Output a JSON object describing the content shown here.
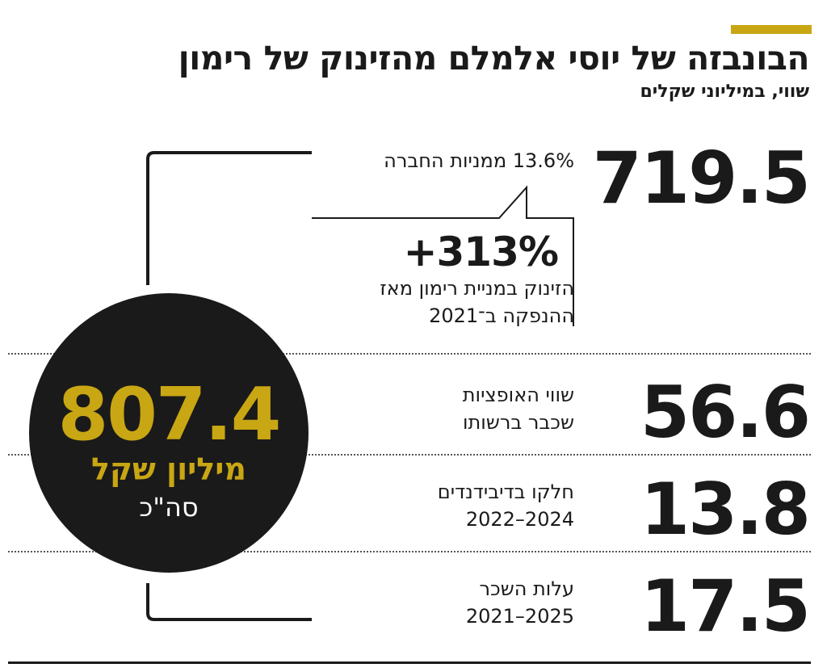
{
  "header": {
    "title": "הבונבזה של יוסי אלמלם מהזינוק של רימון",
    "subtitle": "שווי, במיליוני שקלים"
  },
  "rows": [
    {
      "value": "719.5",
      "label_line1": "13.6% ממניות החברה"
    },
    {
      "value": "56.6",
      "label_line1": "שווי האופציות",
      "label_line2": "שכבר ברשותו"
    },
    {
      "value": "13.8",
      "label_line1": "חלקו בדיבידנדים",
      "label_line2": "2024–2022"
    },
    {
      "value": "17.5",
      "label_line1": "עלות השכר",
      "label_line2": "2025–2021"
    }
  ],
  "callout": {
    "percent": "+313%",
    "line1": "הזינוק במניית רימון מאז",
    "line2": "ההנפקה ב־2021"
  },
  "total": {
    "value": "807.4",
    "unit": "מיליון שקל",
    "label": "סה\"כ"
  },
  "colors": {
    "accent": "#c9a613",
    "dark": "#1a1a1a"
  },
  "chart_data": {
    "type": "table",
    "title": "הבונבזה של יוסי אלמלם מהזינוק של רימון",
    "subtitle": "שווי, במיליוני שקלים",
    "categories": [
      "13.6% ממניות החברה",
      "שווי האופציות שכבר ברשותו",
      "חלקו בדיבידנדים 2024–2022",
      "עלות השכר 2025–2021"
    ],
    "values": [
      719.5,
      56.6,
      13.8,
      17.5
    ],
    "total": 807.4,
    "annotation": "+313% הזינוק במניית רימון מאז ההנפקה ב־2021"
  }
}
